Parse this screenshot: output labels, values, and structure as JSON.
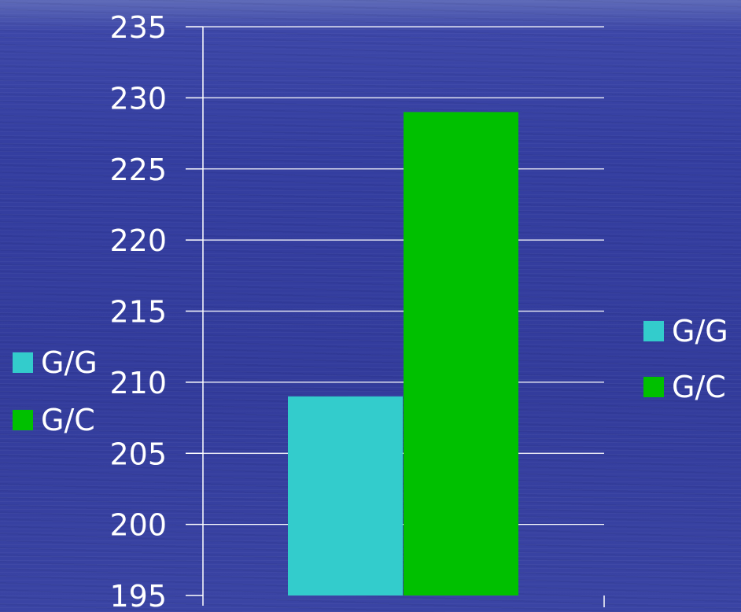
{
  "chart_data": {
    "type": "bar",
    "categories": [
      ""
    ],
    "series": [
      {
        "name": "G/G",
        "values": [
          209
        ],
        "color": "#33cccc"
      },
      {
        "name": "G/C",
        "values": [
          229
        ],
        "color": "#00c000"
      }
    ],
    "ylim": [
      195,
      235
    ],
    "yticks": [
      "195",
      "200",
      "205",
      "210",
      "215",
      "220",
      "225",
      "230",
      "235"
    ],
    "grid": true,
    "legend_placement": "right",
    "secondary_legend_placement": "left",
    "title": "",
    "xlabel": "",
    "ylabel": ""
  }
}
